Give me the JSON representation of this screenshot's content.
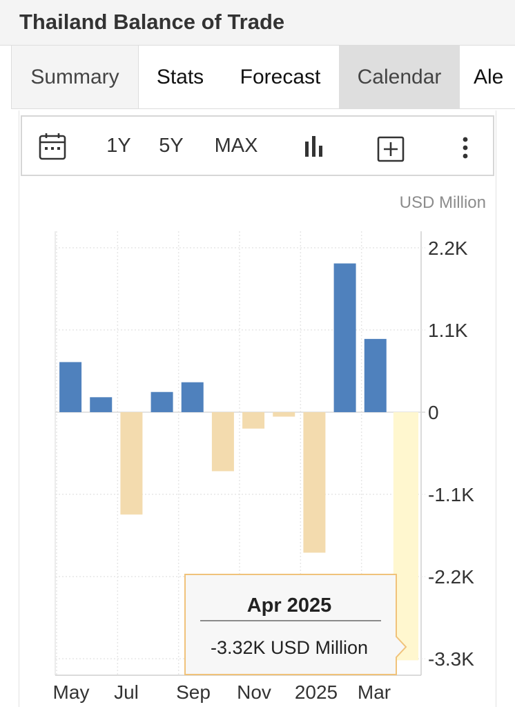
{
  "header": {
    "title": "Thailand Balance of Trade"
  },
  "tabs": [
    "Summary",
    "Stats",
    "Forecast",
    "Calendar",
    "Ale"
  ],
  "toolbar": {
    "range_buttons": [
      "1Y",
      "5Y",
      "MAX"
    ],
    "icons": [
      "calendar-icon",
      "bar-chart-icon",
      "add-box-icon",
      "more-vertical-icon"
    ]
  },
  "colors": {
    "positive": "#4f81bd",
    "negative": "#f3dbae",
    "highlight": "#fff7cf",
    "tooltip_border": "#f0c27a"
  },
  "chart_data": {
    "type": "bar",
    "unit": "USD Million",
    "categories": [
      "May 2024",
      "Jun 2024",
      "Jul 2024",
      "Aug 2024",
      "Sep 2024",
      "Oct 2024",
      "Nov 2024",
      "Dec 2024",
      "Jan 2025",
      "Feb 2025",
      "Mar 2025",
      "Apr 2025"
    ],
    "values": [
      670,
      200,
      -1370,
      270,
      400,
      -790,
      -220,
      -60,
      -1880,
      1990,
      980,
      -3320
    ],
    "x_tick_labels": [
      "May",
      "Jul",
      "Sep",
      "Nov",
      "2025",
      "Mar"
    ],
    "y_tick_labels": [
      "2.2K",
      "1.1K",
      "0",
      "-1.1K",
      "-2.2K",
      "-3.3K"
    ],
    "y_ticks": [
      2200,
      1100,
      0,
      -1100,
      -2200,
      -3300
    ],
    "ylim": [
      -3520,
      2420
    ],
    "grid": true,
    "highlighted_index": 11,
    "tooltip": {
      "title": "Apr 2025",
      "value": "-3.32K USD Million"
    }
  }
}
